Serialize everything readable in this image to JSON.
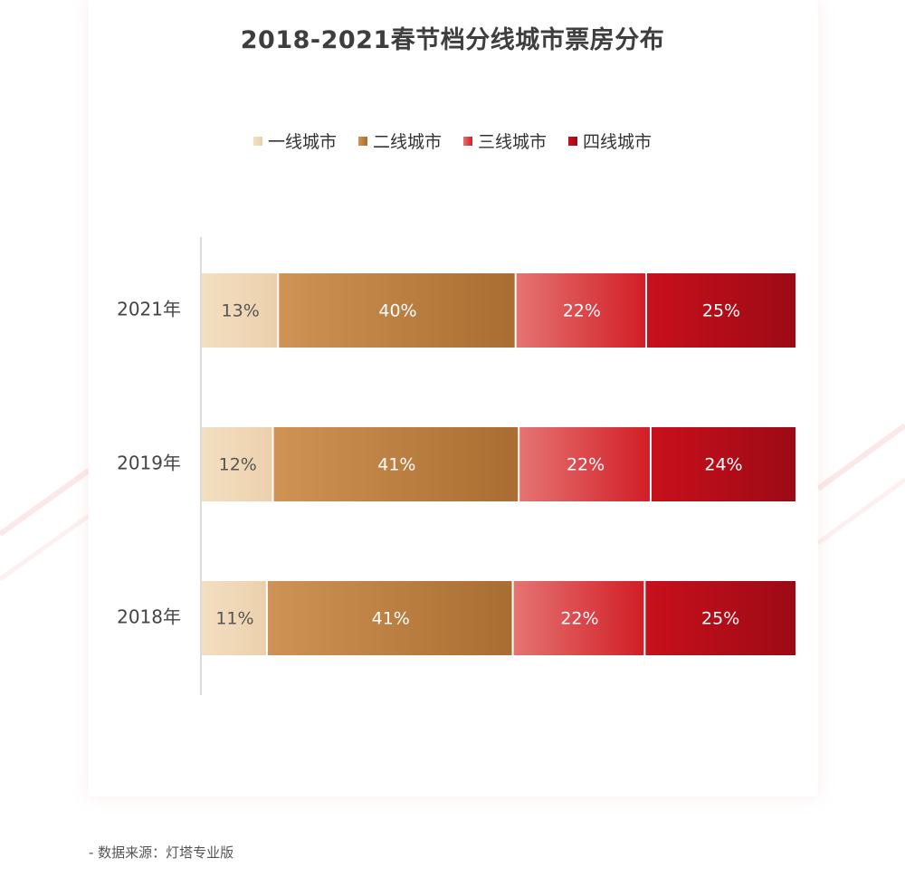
{
  "chart_data": {
    "type": "bar",
    "orientation": "horizontal",
    "stacked": true,
    "percent": true,
    "title": "2018-2021春节档分线城市票房分布",
    "categories": [
      "2021年",
      "2019年",
      "2018年"
    ],
    "series": [
      {
        "name": "一线城市",
        "values": [
          13,
          12,
          11
        ],
        "labels": [
          "13%",
          "12%",
          "11%"
        ],
        "color": "#f3dfc1",
        "color_end": "#ecd0ad"
      },
      {
        "name": "二线城市",
        "values": [
          40,
          41,
          41
        ],
        "labels": [
          "40%",
          "41%",
          "41%"
        ],
        "color": "#cf9355",
        "color_end": "#a96d31"
      },
      {
        "name": "三线城市",
        "values": [
          22,
          22,
          22
        ],
        "labels": [
          "22%",
          "22%",
          "22%"
        ],
        "color": "#e57472",
        "color_end": "#d11e26"
      },
      {
        "name": "四线城市",
        "values": [
          25,
          24,
          25
        ],
        "labels": [
          "25%",
          "24%",
          "25%"
        ],
        "color": "#c8101c",
        "color_end": "#9c0a15"
      }
    ],
    "xlim": [
      0,
      100
    ],
    "grid": false,
    "legend_position": "top"
  },
  "source": "- 数据来源：灯塔专业版"
}
